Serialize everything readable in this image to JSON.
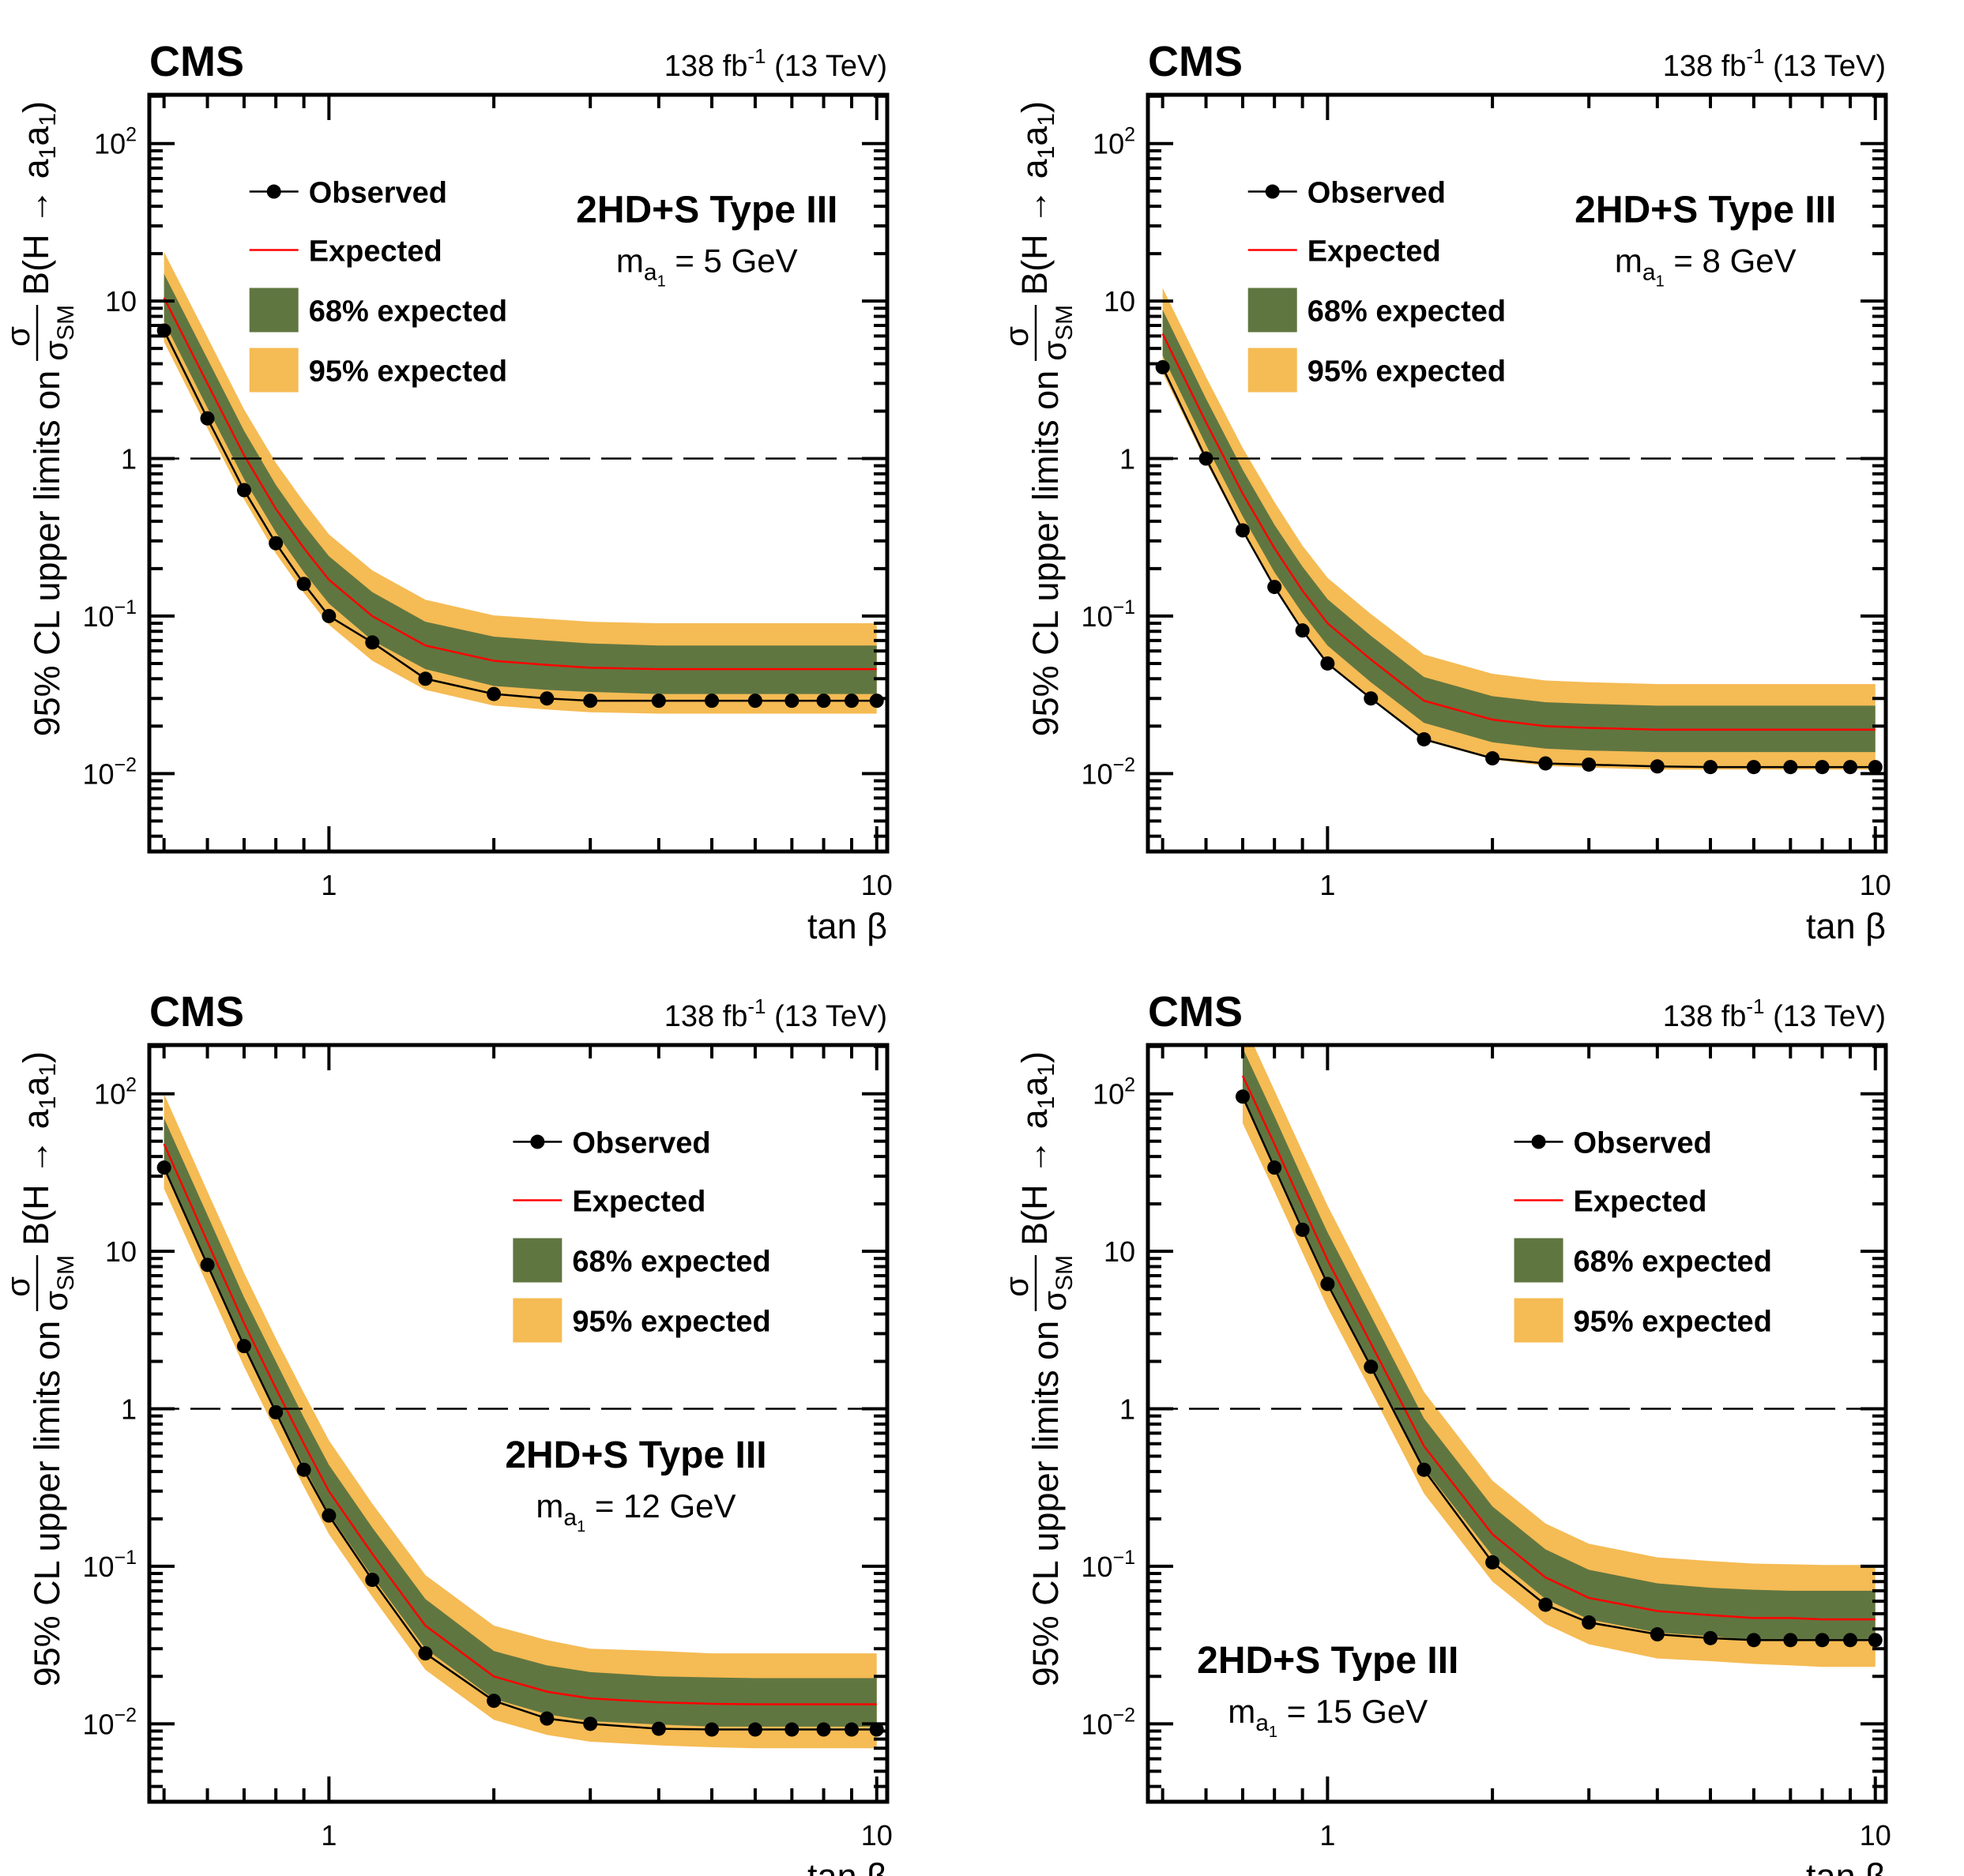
{
  "figure": {
    "experiment": "CMS",
    "lumi": "138 fb",
    "lumi_exp": "-1",
    "energy": "(13 TeV)",
    "xlabel": "tan β",
    "ylabel": {
      "prefix": "95% CL upper limits on",
      "num": "σ",
      "den": "σ",
      "den_sub": "SM",
      "suffix_a": "B(H → a",
      "sub1": "1",
      "suffix_b": "a",
      "sub2": "1",
      "suffix_c": ")"
    },
    "legend": {
      "observed": "Observed",
      "expected": "Expected",
      "band68": "68% expected",
      "band95": "95% expected"
    },
    "model": "2HD+S Type III",
    "colors": {
      "observed": "#000000",
      "expected": "#ff0000",
      "band68": "#607641",
      "band95": "#f5bb54",
      "reference_line": "#000000"
    }
  },
  "chart_data": [
    {
      "type": "line",
      "mass_label": {
        "m": "m",
        "a": "a",
        "sub": "1",
        "rest": "= 5 GeV"
      },
      "xlabel": "tan β",
      "xscale": "log",
      "yscale": "log",
      "xlim": [
        0.47,
        10.45
      ],
      "ylim": [
        0.0032,
        204
      ],
      "xticks": [
        {
          "v": 1,
          "label": "1"
        },
        {
          "v": 10,
          "label": "10"
        }
      ],
      "yticks": [
        {
          "v": 0.01,
          "base": "10",
          "exp": "−2"
        },
        {
          "v": 0.1,
          "base": "10",
          "exp": "−1"
        },
        {
          "v": 1,
          "base": "1",
          "exp": ""
        },
        {
          "v": 10,
          "base": "10",
          "exp": ""
        },
        {
          "v": 100,
          "base": "10",
          "exp": "2"
        }
      ],
      "reference_line": 1,
      "legend_position": "top-left",
      "x": [
        0.5,
        0.6,
        0.7,
        0.8,
        0.9,
        1,
        1.2,
        1.5,
        2,
        2.5,
        3,
        4,
        5,
        6,
        7,
        8,
        9,
        10
      ],
      "series": [
        {
          "name": "Observed",
          "values": [
            6.5,
            1.8,
            0.63,
            0.29,
            0.16,
            0.1,
            0.068,
            0.04,
            0.032,
            0.03,
            0.029,
            0.029,
            0.029,
            0.029,
            0.029,
            0.029,
            0.029,
            0.029
          ]
        },
        {
          "name": "Expected",
          "values": [
            10.5,
            3.0,
            1.05,
            0.48,
            0.27,
            0.17,
            0.1,
            0.065,
            0.052,
            0.049,
            0.047,
            0.046,
            0.046,
            0.046,
            0.046,
            0.046,
            0.046,
            0.046
          ]
        },
        {
          "name": "68% expected",
          "lo": [
            7.4,
            2.1,
            0.74,
            0.34,
            0.19,
            0.12,
            0.07,
            0.046,
            0.036,
            0.034,
            0.033,
            0.032,
            0.032,
            0.032,
            0.032,
            0.032,
            0.032,
            0.032
          ],
          "hi": [
            14.9,
            4.3,
            1.5,
            0.68,
            0.38,
            0.24,
            0.142,
            0.092,
            0.074,
            0.07,
            0.067,
            0.065,
            0.065,
            0.065,
            0.065,
            0.065,
            0.065,
            0.065
          ]
        },
        {
          "name": "95% expected",
          "lo": [
            5.5,
            1.56,
            0.55,
            0.25,
            0.14,
            0.088,
            0.052,
            0.034,
            0.027,
            0.0255,
            0.0245,
            0.024,
            0.024,
            0.024,
            0.024,
            0.024,
            0.024,
            0.024
          ],
          "hi": [
            20.5,
            5.9,
            2.05,
            0.94,
            0.53,
            0.33,
            0.195,
            0.127,
            0.101,
            0.096,
            0.092,
            0.09,
            0.09,
            0.09,
            0.09,
            0.09,
            0.09,
            0.09
          ]
        }
      ]
    },
    {
      "type": "line",
      "mass_label": {
        "m": "m",
        "a": "a",
        "sub": "1",
        "rest": "= 8 GeV"
      },
      "xlabel": "tan β",
      "xscale": "log",
      "yscale": "log",
      "xlim": [
        0.47,
        10.45
      ],
      "ylim": [
        0.0032,
        204
      ],
      "xticks": [
        {
          "v": 1,
          "label": "1"
        },
        {
          "v": 10,
          "label": "10"
        }
      ],
      "yticks": [
        {
          "v": 0.01,
          "base": "10",
          "exp": "−2"
        },
        {
          "v": 0.1,
          "base": "10",
          "exp": "−1"
        },
        {
          "v": 1,
          "base": "1",
          "exp": ""
        },
        {
          "v": 10,
          "base": "10",
          "exp": ""
        },
        {
          "v": 100,
          "base": "10",
          "exp": "2"
        }
      ],
      "reference_line": 1,
      "legend_position": "top-left",
      "x": [
        0.5,
        0.6,
        0.7,
        0.8,
        0.9,
        1,
        1.2,
        1.5,
        2,
        2.5,
        3,
        4,
        5,
        6,
        7,
        8,
        9,
        10
      ],
      "series": [
        {
          "name": "Observed",
          "values": [
            3.8,
            1.0,
            0.35,
            0.153,
            0.081,
            0.05,
            0.03,
            0.0165,
            0.0125,
            0.0116,
            0.0114,
            0.0111,
            0.011,
            0.011,
            0.011,
            0.011,
            0.011,
            0.011
          ]
        },
        {
          "name": "Expected",
          "values": [
            6.2,
            1.7,
            0.6,
            0.27,
            0.145,
            0.09,
            0.053,
            0.029,
            0.022,
            0.02,
            0.0195,
            0.019,
            0.019,
            0.019,
            0.019,
            0.019,
            0.019,
            0.019
          ]
        },
        {
          "name": "68% expected",
          "lo": [
            4.5,
            1.22,
            0.43,
            0.19,
            0.104,
            0.065,
            0.038,
            0.021,
            0.0158,
            0.0144,
            0.014,
            0.0137,
            0.0137,
            0.0137,
            0.0137,
            0.0137,
            0.0137,
            0.0137
          ],
          "hi": [
            8.8,
            2.4,
            0.85,
            0.38,
            0.206,
            0.128,
            0.075,
            0.041,
            0.031,
            0.0284,
            0.0277,
            0.027,
            0.027,
            0.027,
            0.027,
            0.027,
            0.027,
            0.027
          ]
        },
        {
          "name": "95% expected",
          "lo": [
            3.5,
            0.95,
            0.34,
            0.15,
            0.081,
            0.05,
            0.03,
            0.0162,
            0.0123,
            0.0112,
            0.0109,
            0.0106,
            0.0106,
            0.0106,
            0.0106,
            0.0106,
            0.0106,
            0.0106
          ],
          "hi": [
            12.1,
            3.3,
            1.17,
            0.53,
            0.28,
            0.175,
            0.103,
            0.057,
            0.043,
            0.039,
            0.038,
            0.037,
            0.037,
            0.037,
            0.037,
            0.037,
            0.037,
            0.037
          ]
        }
      ]
    },
    {
      "type": "line",
      "mass_label": {
        "m": "m",
        "a": "a",
        "sub": "1",
        "rest": "= 12 GeV"
      },
      "xlabel": "tan β",
      "xscale": "log",
      "yscale": "log",
      "xlim": [
        0.47,
        10.45
      ],
      "ylim": [
        0.0032,
        204
      ],
      "xticks": [
        {
          "v": 1,
          "label": "1"
        },
        {
          "v": 10,
          "label": "10"
        }
      ],
      "yticks": [
        {
          "v": 0.01,
          "base": "10",
          "exp": "−2"
        },
        {
          "v": 0.1,
          "base": "10",
          "exp": "−1"
        },
        {
          "v": 1,
          "base": "1",
          "exp": ""
        },
        {
          "v": 10,
          "base": "10",
          "exp": ""
        },
        {
          "v": 100,
          "base": "10",
          "exp": "2"
        }
      ],
      "reference_line": 1,
      "legend_position": "top-right",
      "x": [
        0.5,
        0.6,
        0.7,
        0.8,
        0.9,
        1,
        1.2,
        1.5,
        2,
        2.5,
        3,
        4,
        5,
        6,
        7,
        8,
        9,
        10
      ],
      "series": [
        {
          "name": "Observed",
          "values": [
            34,
            8.2,
            2.5,
            0.95,
            0.41,
            0.21,
            0.082,
            0.028,
            0.014,
            0.0108,
            0.01,
            0.0093,
            0.0092,
            0.0092,
            0.0092,
            0.0092,
            0.0092,
            0.0092
          ]
        },
        {
          "name": "Expected",
          "values": [
            48,
            11.5,
            3.5,
            1.35,
            0.6,
            0.3,
            0.12,
            0.042,
            0.02,
            0.016,
            0.0145,
            0.0137,
            0.0134,
            0.0133,
            0.0133,
            0.0133,
            0.0133,
            0.0133
          ]
        },
        {
          "name": "68% expected",
          "lo": [
            34.5,
            8.3,
            2.5,
            0.97,
            0.43,
            0.216,
            0.086,
            0.03,
            0.0144,
            0.0115,
            0.0104,
            0.0099,
            0.0096,
            0.0096,
            0.0096,
            0.0096,
            0.0096,
            0.0096
          ],
          "hi": [
            70,
            17,
            5.1,
            2.0,
            0.88,
            0.44,
            0.176,
            0.062,
            0.029,
            0.0235,
            0.0213,
            0.02,
            0.0197,
            0.0195,
            0.0195,
            0.0195,
            0.0195,
            0.0195
          ]
        },
        {
          "name": "95% expected",
          "lo": [
            25,
            6.1,
            1.85,
            0.72,
            0.32,
            0.16,
            0.064,
            0.022,
            0.0106,
            0.0085,
            0.0077,
            0.0073,
            0.0071,
            0.007,
            0.007,
            0.007,
            0.007,
            0.007
          ],
          "hi": [
            100,
            24,
            7.3,
            2.8,
            1.26,
            0.63,
            0.25,
            0.088,
            0.042,
            0.034,
            0.03,
            0.029,
            0.028,
            0.028,
            0.028,
            0.028,
            0.028,
            0.028
          ]
        }
      ]
    },
    {
      "type": "line",
      "mass_label": {
        "m": "m",
        "a": "a",
        "sub": "1",
        "rest": "= 15 GeV"
      },
      "xlabel": "tan β",
      "xscale": "log",
      "yscale": "log",
      "xlim": [
        0.47,
        10.45
      ],
      "ylim": [
        0.0032,
        204
      ],
      "xticks": [
        {
          "v": 1,
          "label": "1"
        },
        {
          "v": 10,
          "label": "10"
        }
      ],
      "yticks": [
        {
          "v": 0.01,
          "base": "10",
          "exp": "−2"
        },
        {
          "v": 0.1,
          "base": "10",
          "exp": "−1"
        },
        {
          "v": 1,
          "base": "1",
          "exp": ""
        },
        {
          "v": 10,
          "base": "10",
          "exp": ""
        },
        {
          "v": 100,
          "base": "10",
          "exp": "2"
        }
      ],
      "reference_line": 1,
      "legend_position": "top-right",
      "x": [
        0.7,
        0.8,
        0.9,
        1,
        1.2,
        1.5,
        2,
        2.5,
        3,
        4,
        5,
        6,
        7,
        8,
        9,
        10
      ],
      "series": [
        {
          "name": "Observed",
          "values": [
            96,
            34,
            13.7,
            6.2,
            1.85,
            0.41,
            0.106,
            0.057,
            0.044,
            0.037,
            0.035,
            0.034,
            0.034,
            0.034,
            0.034,
            0.034
          ]
        },
        {
          "name": "Expected",
          "values": [
            130,
            48,
            19.5,
            8.8,
            2.6,
            0.58,
            0.16,
            0.085,
            0.063,
            0.052,
            0.049,
            0.047,
            0.047,
            0.046,
            0.046,
            0.046
          ]
        },
        {
          "name": "68% expected",
          "lo": [
            95,
            35,
            14.2,
            6.4,
            1.9,
            0.42,
            0.117,
            0.062,
            0.046,
            0.038,
            0.036,
            0.034,
            0.034,
            0.034,
            0.034,
            0.034
          ],
          "hi": [
            195,
            72,
            29,
            13.2,
            3.9,
            0.87,
            0.24,
            0.128,
            0.095,
            0.078,
            0.073,
            0.071,
            0.07,
            0.07,
            0.07,
            0.07
          ]
        },
        {
          "name": "95% expected",
          "lo": [
            65,
            24,
            9.8,
            4.4,
            1.3,
            0.29,
            0.08,
            0.043,
            0.032,
            0.026,
            0.025,
            0.024,
            0.0235,
            0.023,
            0.023,
            0.023
          ],
          "hi": [
            290,
            105,
            43,
            19.5,
            5.7,
            1.28,
            0.35,
            0.187,
            0.139,
            0.114,
            0.108,
            0.104,
            0.103,
            0.102,
            0.102,
            0.102
          ]
        }
      ]
    }
  ]
}
